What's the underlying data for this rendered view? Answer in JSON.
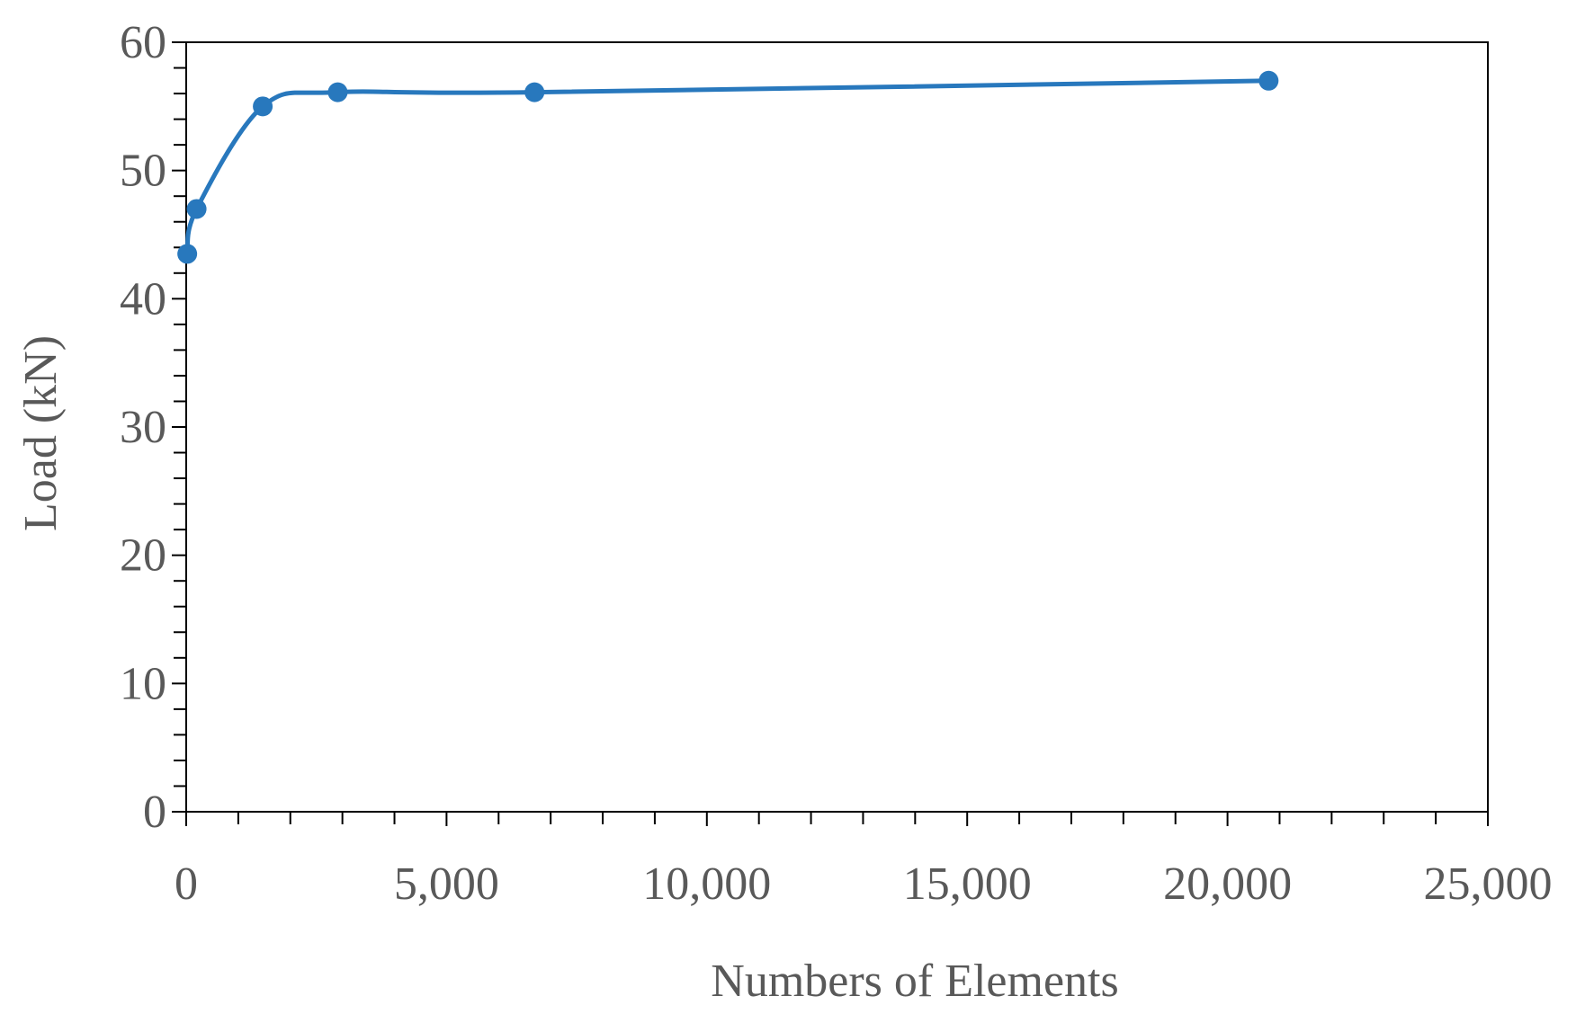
{
  "chart_data": {
    "type": "line",
    "x_label": "Numbers of Elements",
    "y_label": "Load (kN)",
    "series": [
      {
        "name": "Load",
        "color": "#2878bd",
        "x": [
          20,
          200,
          1470,
          2910,
          6690,
          20790
        ],
        "values": [
          43.5,
          47.0,
          55.0,
          56.1,
          56.1,
          57.0
        ]
      }
    ],
    "xlim": [
      0,
      25000
    ],
    "xticks": [
      0,
      {
        "value": 5000,
        "label": "5,000"
      },
      {
        "value": 10000,
        "label": "10,000"
      },
      {
        "value": 15000,
        "label": "15,000"
      },
      {
        "value": 20000,
        "label": "20,000"
      },
      {
        "value": 25000,
        "label": "25,000"
      }
    ],
    "ylim": [
      0,
      60
    ],
    "yticks": [
      0,
      10,
      20,
      30,
      40,
      50,
      60
    ],
    "smooth": true
  }
}
